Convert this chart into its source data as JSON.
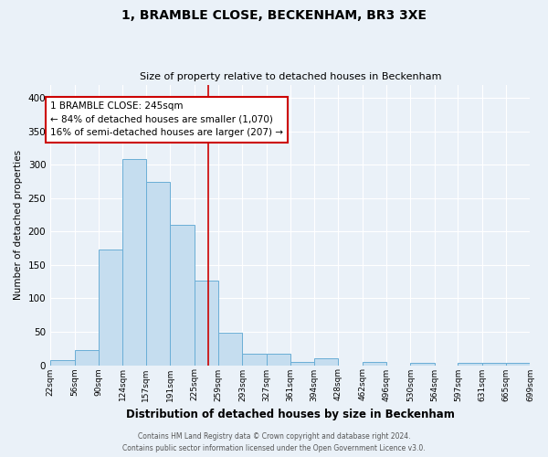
{
  "title": "1, BRAMBLE CLOSE, BECKENHAM, BR3 3XE",
  "subtitle": "Size of property relative to detached houses in Beckenham",
  "xlabel": "Distribution of detached houses by size in Beckenham",
  "ylabel": "Number of detached properties",
  "bar_color": "#c5ddef",
  "bar_edge_color": "#6aaed6",
  "background_color": "#eaf1f8",
  "grid_color": "#ffffff",
  "annotation_line_color": "#cc0000",
  "annotation_box_color": "#cc0000",
  "property_value": 245,
  "annotation_title": "1 BRAMBLE CLOSE: 245sqm",
  "annotation_line1": "← 84% of detached houses are smaller (1,070)",
  "annotation_line2": "16% of semi-detached houses are larger (207) →",
  "bins": [
    22,
    56,
    90,
    124,
    157,
    191,
    225,
    259,
    293,
    327,
    361,
    394,
    428,
    462,
    496,
    530,
    564,
    597,
    631,
    665,
    699
  ],
  "counts": [
    8,
    22,
    173,
    308,
    275,
    210,
    126,
    48,
    17,
    17,
    5,
    10,
    0,
    5,
    0,
    3,
    0,
    3,
    3,
    3
  ],
  "ylim": [
    0,
    420
  ],
  "yticks": [
    0,
    50,
    100,
    150,
    200,
    250,
    300,
    350,
    400
  ],
  "footer1": "Contains HM Land Registry data © Crown copyright and database right 2024.",
  "footer2": "Contains public sector information licensed under the Open Government Licence v3.0."
}
